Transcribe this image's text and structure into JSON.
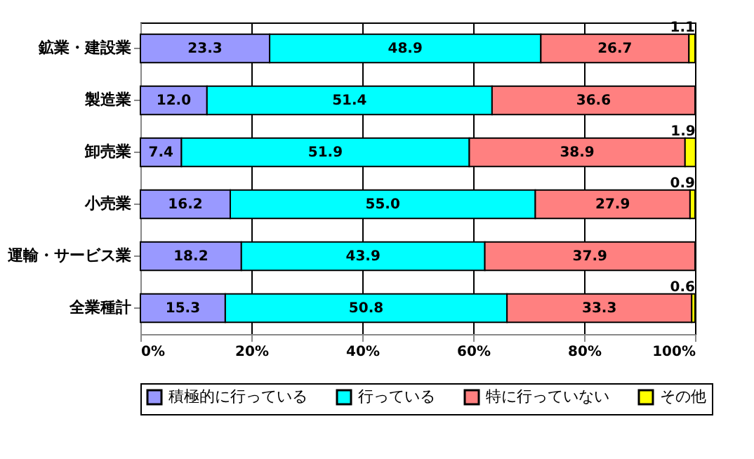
{
  "chart_data": {
    "type": "bar",
    "orientation": "horizontal",
    "stacked": true,
    "categories": [
      "鉱業・建設業",
      "製造業",
      "卸売業",
      "小売業",
      "運輸・サービス業",
      "全業種計"
    ],
    "series": [
      {
        "name": "積極的に行っている",
        "color": "#9999ff",
        "values": [
          23.3,
          12.0,
          7.4,
          16.2,
          18.2,
          15.3
        ],
        "value_labels": [
          "23.3",
          "12.0",
          "7.4",
          "16.2",
          "18.2",
          "15.3"
        ]
      },
      {
        "name": "行っている",
        "color": "#00ffff",
        "values": [
          48.9,
          51.4,
          51.9,
          55.0,
          43.9,
          50.8
        ],
        "value_labels": [
          "48.9",
          "51.4",
          "51.9",
          "55.0",
          "43.9",
          "50.8"
        ]
      },
      {
        "name": "特に行っていない",
        "color": "#ff8080",
        "values": [
          26.7,
          36.6,
          38.9,
          27.9,
          37.9,
          33.3
        ],
        "value_labels": [
          "26.7",
          "36.6",
          "38.9",
          "27.9",
          "37.9",
          "33.3"
        ]
      },
      {
        "name": "その他",
        "color": "#ffff00",
        "values": [
          1.1,
          null,
          1.9,
          0.9,
          null,
          0.6
        ],
        "value_labels": [
          "1.1",
          null,
          "1.9",
          "0.9",
          null,
          "0.6"
        ]
      }
    ],
    "xlim": [
      0,
      100
    ],
    "xticks": [
      {
        "value": 0,
        "label": "0%"
      },
      {
        "value": 20,
        "label": "20%"
      },
      {
        "value": 40,
        "label": "40%"
      },
      {
        "value": 60,
        "label": "60%"
      },
      {
        "value": 80,
        "label": "80%"
      },
      {
        "value": 100,
        "label": "100%"
      }
    ],
    "grid": "x",
    "legend": "bottom"
  }
}
